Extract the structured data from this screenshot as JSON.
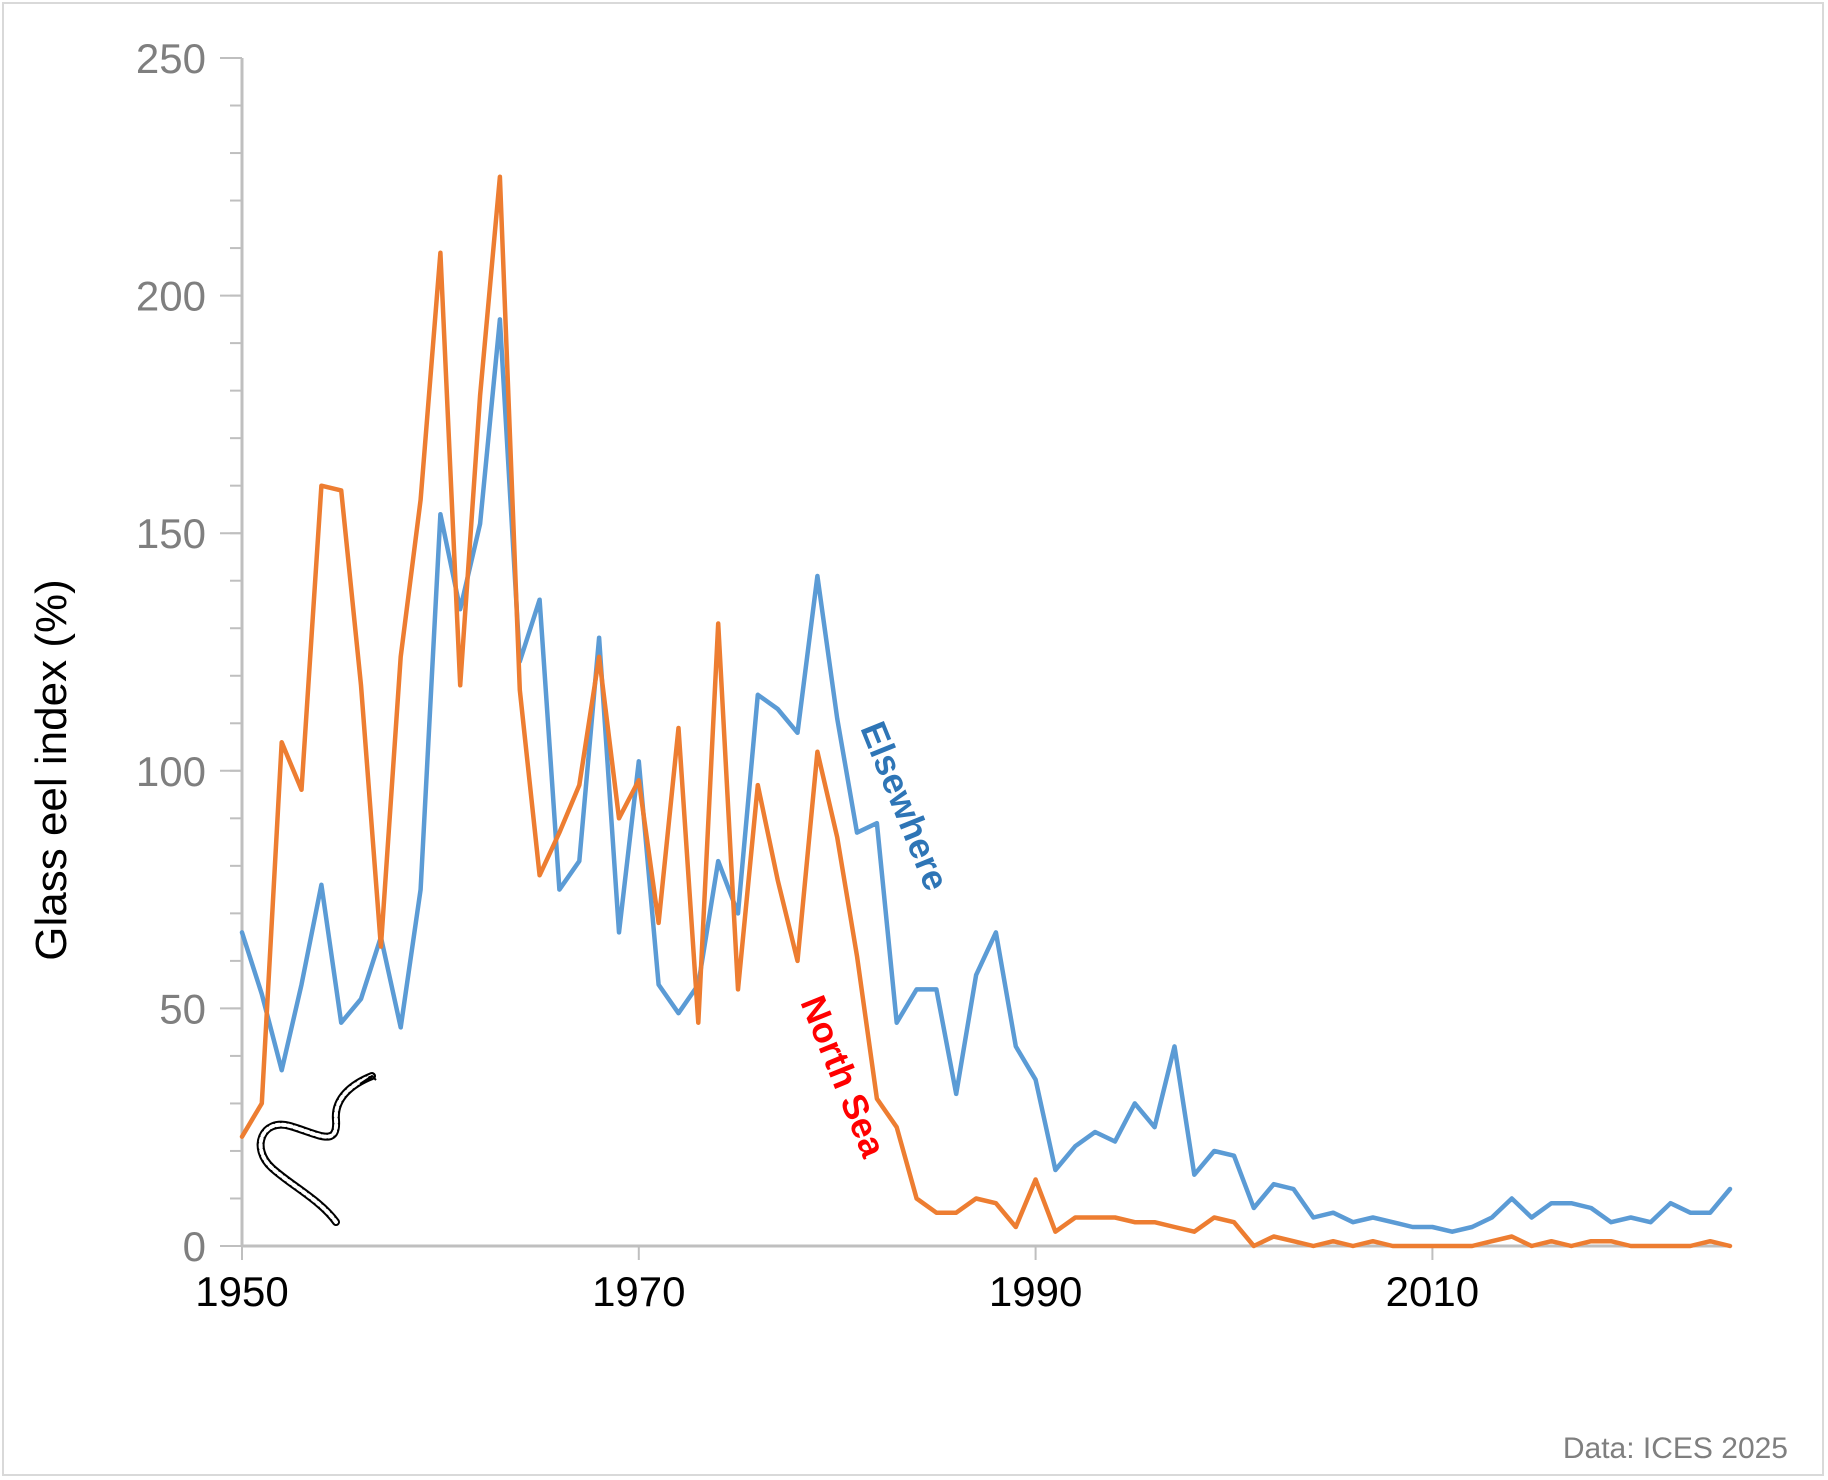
{
  "chart_data": {
    "type": "line",
    "ylabel": "Glass eel index (%)",
    "xlim": [
      1950,
      2025
    ],
    "ylim": [
      0,
      250
    ],
    "x_ticks": [
      1950,
      1970,
      1990,
      2010
    ],
    "y_ticks": [
      0,
      50,
      100,
      150,
      200,
      250
    ],
    "y_minor_step": 10,
    "grid": false,
    "legend": "inline labels",
    "source": "Data: ICES 2025",
    "series": [
      {
        "name": "Elsewhere",
        "color": "#5b9bd5",
        "label_color": "#2e75b6",
        "x": [
          1950,
          1951,
          1952,
          1953,
          1954,
          1955,
          1956,
          1957,
          1958,
          1959,
          1960,
          1961,
          1962,
          1963,
          1964,
          1965,
          1966,
          1967,
          1968,
          1969,
          1970,
          1971,
          1972,
          1973,
          1974,
          1975,
          1976,
          1977,
          1978,
          1979,
          1980,
          1981,
          1982,
          1983,
          1984,
          1985,
          1986,
          1987,
          1988,
          1989,
          1990,
          1991,
          1992,
          1993,
          1994,
          1995,
          1996,
          1997,
          1998,
          1999,
          2000,
          2001,
          2002,
          2003,
          2004,
          2005,
          2006,
          2007,
          2008,
          2009,
          2010,
          2011,
          2012,
          2013,
          2014,
          2015,
          2016,
          2017,
          2018,
          2019,
          2020,
          2021,
          2022,
          2023,
          2024,
          2025
        ],
        "values": [
          66,
          53,
          37,
          55,
          76,
          47,
          52,
          65,
          46,
          75,
          154,
          134,
          152,
          195,
          123,
          136,
          75,
          81,
          128,
          66,
          102,
          55,
          49,
          55,
          81,
          70,
          116,
          113,
          108,
          141,
          111,
          87,
          89,
          47,
          54,
          54,
          32,
          57,
          66,
          42,
          35,
          16,
          21,
          24,
          22,
          30,
          25,
          42,
          15,
          20,
          19,
          8,
          13,
          12,
          6,
          7,
          5,
          6,
          5,
          4,
          4,
          3,
          4,
          6,
          10,
          6,
          9,
          9,
          8,
          5,
          6,
          5,
          9,
          7,
          7,
          12
        ]
      },
      {
        "name": "North Sea",
        "color": "#ed7d31",
        "label_color": "#ff0000",
        "x": [
          1950,
          1951,
          1952,
          1953,
          1954,
          1955,
          1956,
          1957,
          1958,
          1959,
          1960,
          1961,
          1962,
          1963,
          1964,
          1965,
          1966,
          1967,
          1968,
          1969,
          1970,
          1971,
          1972,
          1973,
          1974,
          1975,
          1976,
          1977,
          1978,
          1979,
          1980,
          1981,
          1982,
          1983,
          1984,
          1985,
          1986,
          1987,
          1988,
          1989,
          1990,
          1991,
          1992,
          1993,
          1994,
          1995,
          1996,
          1997,
          1998,
          1999,
          2000,
          2001,
          2002,
          2003,
          2004,
          2005,
          2006,
          2007,
          2008,
          2009,
          2010,
          2011,
          2012,
          2013,
          2014,
          2015,
          2016,
          2017,
          2018,
          2019,
          2020,
          2021,
          2022,
          2023,
          2024,
          2025
        ],
        "values": [
          23,
          30,
          106,
          96,
          160,
          159,
          118,
          63,
          124,
          157,
          209,
          118,
          179,
          225,
          117,
          78,
          87,
          97,
          124,
          90,
          98,
          68,
          109,
          47,
          131,
          54,
          97,
          77,
          60,
          104,
          86,
          61,
          31,
          25,
          10,
          7,
          7,
          10,
          9,
          4,
          14,
          3,
          6,
          6,
          6,
          5,
          5,
          4,
          3,
          6,
          5,
          0,
          2,
          1,
          0,
          1,
          0,
          1,
          0,
          0,
          0,
          0,
          0,
          1,
          2,
          0,
          1,
          0,
          1,
          1,
          0,
          0,
          0,
          0,
          1,
          0
        ]
      }
    ]
  }
}
